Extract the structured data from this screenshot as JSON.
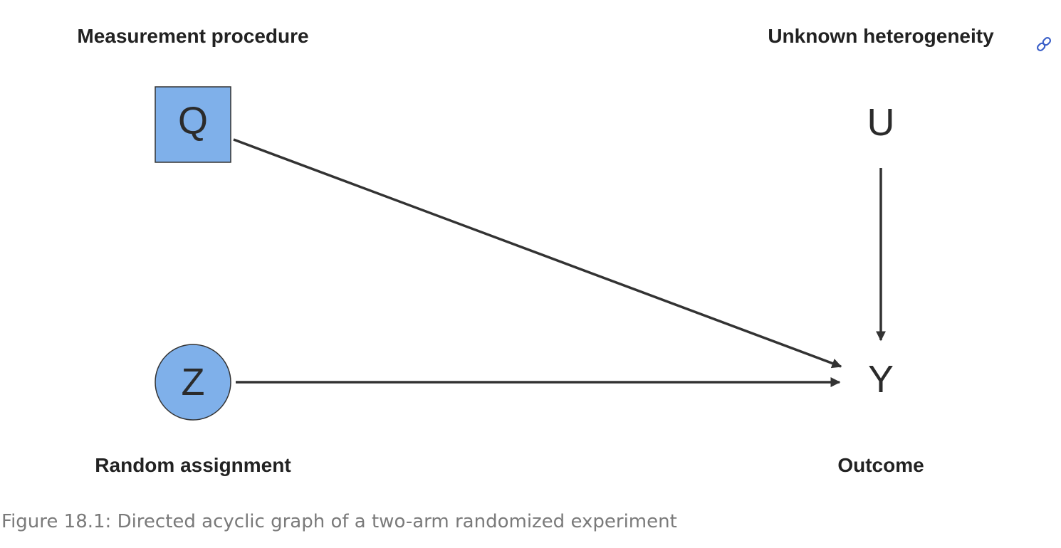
{
  "nodes": {
    "q": {
      "letter": "Q",
      "label": "Measurement procedure"
    },
    "u": {
      "letter": "U",
      "label": "Unknown heterogeneity"
    },
    "z": {
      "letter": "Z",
      "label": "Random assignment"
    },
    "y": {
      "letter": "Y",
      "label": "Outcome"
    }
  },
  "colors": {
    "node_fill": "#7fb0ea",
    "edge": "#333333",
    "link_icon": "#3a5fc8",
    "caption": "#7a7a7a"
  },
  "caption": "Figure 18.1: Directed acyclic graph of a two-arm randomized experiment",
  "anchor_icon": "link-icon"
}
